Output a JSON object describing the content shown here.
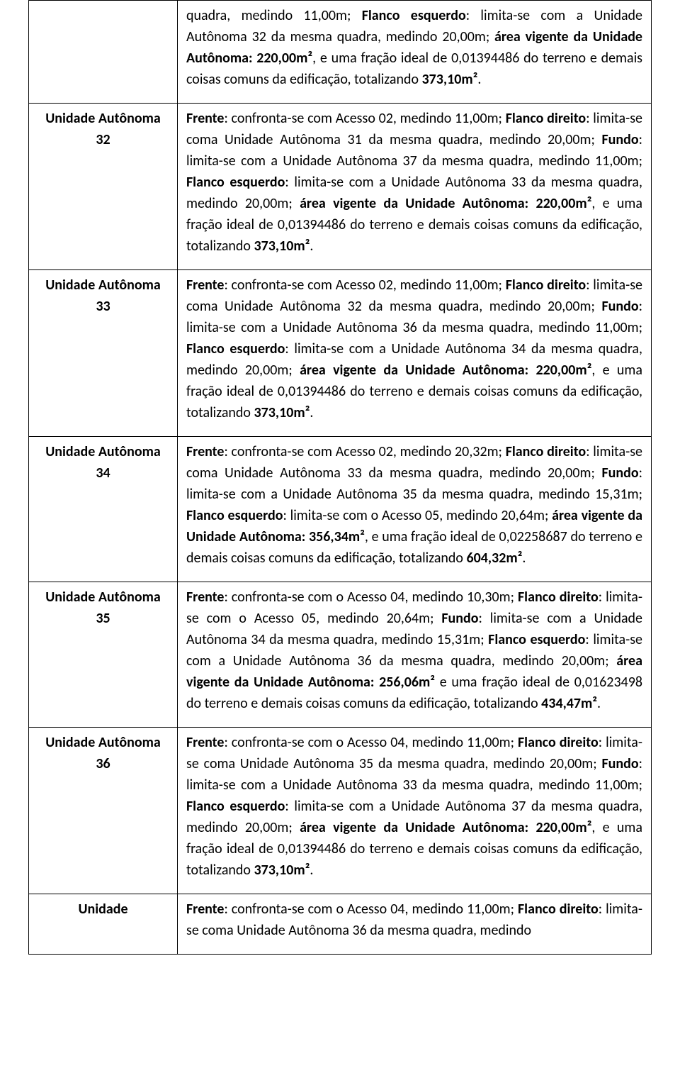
{
  "layout": {
    "pageWidth": 960,
    "labelColWidth": 185,
    "fontFamily": "Calibri",
    "fontSizePx": 20,
    "textColor": "#000000",
    "borderColor": "#000000",
    "backgroundColor": "#ffffff"
  },
  "rows": [
    {
      "label": "",
      "segments": [
        {
          "t": "quadra, medindo 11,00m; ",
          "b": false
        },
        {
          "t": "Flanco esquerdo",
          "b": true
        },
        {
          "t": ": limita-se com a Unidade Autônoma 32 da mesma quadra, medindo 20,00m; ",
          "b": false
        },
        {
          "t": "área vigente da Unidade Autônoma: 220,00m²",
          "b": true
        },
        {
          "t": ", e uma fração ideal de 0,01394486 do terreno e demais coisas comuns da edificação, totalizando ",
          "b": false
        },
        {
          "t": "373,10m²",
          "b": true
        },
        {
          "t": ".",
          "b": false
        }
      ]
    },
    {
      "label": "Unidade Autônoma 32",
      "segments": [
        {
          "t": "Frente",
          "b": true
        },
        {
          "t": ": confronta-se com Acesso 02, medindo 11,00m; ",
          "b": false
        },
        {
          "t": "Flanco direito",
          "b": true
        },
        {
          "t": ": limita-se coma Unidade Autônoma 31 da mesma quadra, medindo 20,00m; ",
          "b": false
        },
        {
          "t": "Fundo",
          "b": true
        },
        {
          "t": ": limita-se com a Unidade Autônoma 37 da mesma quadra, medindo 11,00m; ",
          "b": false
        },
        {
          "t": "Flanco esquerdo",
          "b": true
        },
        {
          "t": ": limita-se com a Unidade Autônoma 33 da mesma quadra, medindo 20,00m; ",
          "b": false
        },
        {
          "t": "área vigente da Unidade Autônoma: 220,00m²",
          "b": true
        },
        {
          "t": ", e uma fração ideal de 0,01394486 do terreno e demais coisas comuns da edificação, totalizando ",
          "b": false
        },
        {
          "t": "373,10m²",
          "b": true
        },
        {
          "t": ".",
          "b": false
        }
      ]
    },
    {
      "label": "Unidade Autônoma 33",
      "segments": [
        {
          "t": "Frente",
          "b": true
        },
        {
          "t": ": confronta-se com Acesso 02, medindo 11,00m; ",
          "b": false
        },
        {
          "t": "Flanco direito",
          "b": true
        },
        {
          "t": ": limita-se coma Unidade Autônoma 32 da mesma quadra, medindo 20,00m; ",
          "b": false
        },
        {
          "t": "Fundo",
          "b": true
        },
        {
          "t": ": limita-se com a Unidade Autônoma 36 da mesma quadra, medindo 11,00m; ",
          "b": false
        },
        {
          "t": "Flanco esquerdo",
          "b": true
        },
        {
          "t": ": limita-se com a Unidade Autônoma 34 da mesma quadra, medindo 20,00m; ",
          "b": false
        },
        {
          "t": "área vigente da Unidade Autônoma: 220,00m²",
          "b": true
        },
        {
          "t": ", e uma fração ideal de 0,01394486 do terreno e demais coisas comuns da edificação, totalizando ",
          "b": false
        },
        {
          "t": "373,10m²",
          "b": true
        },
        {
          "t": ".",
          "b": false
        }
      ]
    },
    {
      "label": "Unidade Autônoma 34",
      "segments": [
        {
          "t": "Frente",
          "b": true
        },
        {
          "t": ": confronta-se com Acesso 02, medindo 20,32m; ",
          "b": false
        },
        {
          "t": "Flanco direito",
          "b": true
        },
        {
          "t": ": limita-se coma Unidade Autônoma 33 da mesma quadra, medindo 20,00m; ",
          "b": false
        },
        {
          "t": "Fundo",
          "b": true
        },
        {
          "t": ": limita-se com a Unidade Autônoma 35 da mesma quadra, medindo 15,31m; ",
          "b": false
        },
        {
          "t": "Flanco esquerdo",
          "b": true
        },
        {
          "t": ": limita-se com o Acesso 05, medindo 20,64m; ",
          "b": false
        },
        {
          "t": "área vigente da Unidade Autônoma: 356,34m²",
          "b": true
        },
        {
          "t": ", e uma fração ideal de 0,02258687 do terreno e demais coisas comuns da edificação, totalizando ",
          "b": false
        },
        {
          "t": "604,32m²",
          "b": true
        },
        {
          "t": ".",
          "b": false
        }
      ]
    },
    {
      "label": "Unidade Autônoma 35",
      "segments": [
        {
          "t": "Frente",
          "b": true
        },
        {
          "t": ": confronta-se com o Acesso 04, medindo 10,30m; ",
          "b": false
        },
        {
          "t": "Flanco direito",
          "b": true
        },
        {
          "t": ": limita-se com o Acesso 05, medindo 20,64m; ",
          "b": false
        },
        {
          "t": "Fundo",
          "b": true
        },
        {
          "t": ": limita-se com a Unidade Autônoma 34 da mesma quadra, medindo 15,31m; ",
          "b": false
        },
        {
          "t": "Flanco esquerdo",
          "b": true
        },
        {
          "t": ": limita-se com a Unidade Autônoma 36 da mesma quadra, medindo 20,00m; ",
          "b": false
        },
        {
          "t": "área vigente da Unidade Autônoma: 256,06m²",
          "b": true
        },
        {
          "t": " e uma fração ideal de 0,01623498 do terreno e demais coisas comuns da edificação, totalizando ",
          "b": false
        },
        {
          "t": "434,47m²",
          "b": true
        },
        {
          "t": ".",
          "b": false
        }
      ]
    },
    {
      "label": "Unidade Autônoma 36",
      "segments": [
        {
          "t": "Frente",
          "b": true
        },
        {
          "t": ": confronta-se com o Acesso 04, medindo 11,00m; ",
          "b": false
        },
        {
          "t": "Flanco direito",
          "b": true
        },
        {
          "t": ": limita-se coma Unidade Autônoma 35 da mesma quadra, medindo 20,00m; ",
          "b": false
        },
        {
          "t": "Fundo",
          "b": true
        },
        {
          "t": ": limita-se com a Unidade Autônoma 33 da mesma quadra, medindo 11,00m; ",
          "b": false
        },
        {
          "t": "Flanco esquerdo",
          "b": true
        },
        {
          "t": ": limita-se com a Unidade Autônoma 37 da mesma quadra, medindo 20,00m; ",
          "b": false
        },
        {
          "t": "área vigente da Unidade Autônoma: 220,00m²",
          "b": true
        },
        {
          "t": ", e uma fração ideal de 0,01394486 do terreno e demais coisas comuns da edificação, totalizando ",
          "b": false
        },
        {
          "t": "373,10m²",
          "b": true
        },
        {
          "t": ".",
          "b": false
        }
      ]
    },
    {
      "label": "Unidade",
      "segments": [
        {
          "t": "Frente",
          "b": true
        },
        {
          "t": ": confronta-se com o Acesso 04, medindo 11,00m; ",
          "b": false
        },
        {
          "t": "Flanco direito",
          "b": true
        },
        {
          "t": ": limita-se coma Unidade Autônoma 36 da mesma quadra, medindo",
          "b": false
        }
      ]
    }
  ]
}
